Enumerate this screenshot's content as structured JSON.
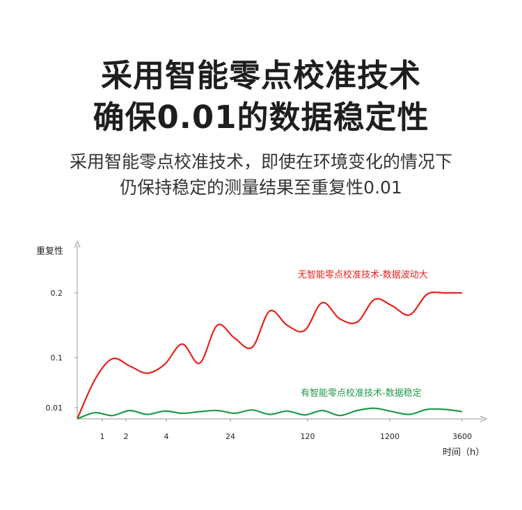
{
  "headline": {
    "line1": "采用智能零点校准技术",
    "line2": "确保0.01的数据稳定性"
  },
  "subtitle": {
    "line1": "采用智能零点校准技术，即使在环境变化的情况下",
    "line2": "仍保持稳定的测量结果至重复性0.01"
  },
  "chart_data": {
    "type": "line",
    "ylabel": "重复性",
    "xlabel": "时间（h）",
    "x_ticks": [
      "1",
      "2",
      "4",
      "24",
      "120",
      "1200",
      "3600"
    ],
    "y_ticks": [
      "0.2",
      "0.1",
      "0.01"
    ],
    "series": [
      {
        "name": "无智能零点校准技术-数据波动大",
        "color": "#e8201c",
        "x": [
          0,
          1,
          2,
          3,
          4,
          5,
          6,
          7,
          8,
          9,
          10,
          11,
          12,
          13,
          14,
          15,
          16,
          17,
          18,
          19,
          20,
          21,
          22
        ],
        "values": [
          0.0,
          0.06,
          0.098,
          0.085,
          0.072,
          0.088,
          0.121,
          0.09,
          0.15,
          0.13,
          0.116,
          0.172,
          0.15,
          0.142,
          0.185,
          0.16,
          0.155,
          0.19,
          0.18,
          0.166,
          0.198,
          0.2,
          0.2
        ]
      },
      {
        "name": "有智能零点校准技术-数据稳定",
        "color": "#1e9a4a",
        "x": [
          0,
          1,
          2,
          3,
          4,
          5,
          6,
          7,
          8,
          9,
          10,
          11,
          12,
          13,
          14,
          15,
          16,
          17,
          18,
          19,
          20,
          21,
          22
        ],
        "values": [
          0.0,
          0.0055,
          0.003,
          0.0075,
          0.004,
          0.007,
          0.005,
          0.0065,
          0.0075,
          0.005,
          0.008,
          0.004,
          0.007,
          0.0035,
          0.0075,
          0.003,
          0.0075,
          0.0095,
          0.0065,
          0.004,
          0.0085,
          0.0085,
          0.0065
        ]
      }
    ]
  }
}
